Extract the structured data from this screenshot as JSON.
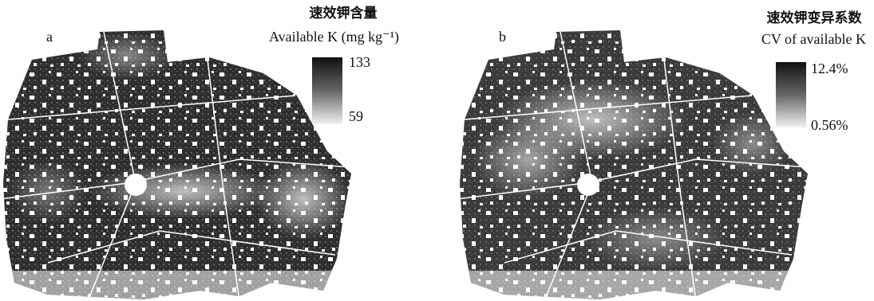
{
  "panels": [
    {
      "label": "a",
      "title_zh": "速效钾含量",
      "title_en": "Available K (mg kg⁻¹)",
      "legend": {
        "max": "133",
        "min": "59"
      }
    },
    {
      "label": "b",
      "title_zh": "速效钾变异系数",
      "title_en": "CV of available K",
      "legend": {
        "max": "12.4%",
        "min": "0.56%"
      }
    }
  ]
}
